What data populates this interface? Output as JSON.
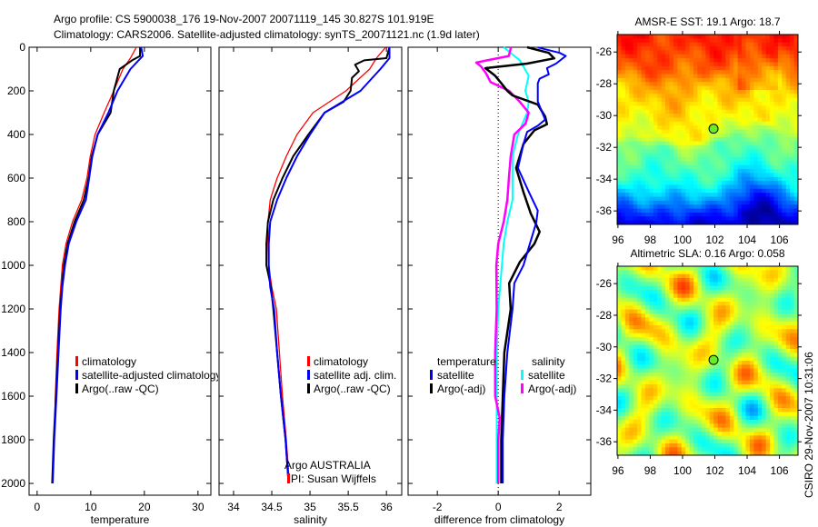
{
  "title": {
    "line1": "Argo profile: CS 5900038_176 19-Nov-2007 20071119_145 30.827S 101.919E",
    "line2": "Climatology: CARS2006. Satellite-adjusted climatology: synTS_20071121.nc (1.9d later)"
  },
  "footer_stamp": "CSIRO 29-Nov-2007 10:31:06",
  "colors": {
    "climatology": "#ff0000",
    "satellite": "#0000ff",
    "argo": "#000000",
    "sal_satellite": "#00ffff",
    "sal_argo": "#ff00ff"
  },
  "chart_data": [
    {
      "type": "line",
      "id": "temperature",
      "xlabel": "temperature",
      "ylabel": "",
      "xlim": [
        -1.5,
        32.4
      ],
      "ylim": [
        2054,
        0
      ],
      "xticks": [
        0,
        10,
        20,
        30
      ],
      "yticks": [
        0,
        200,
        400,
        600,
        800,
        1000,
        1200,
        1400,
        1600,
        1800,
        2000
      ],
      "legend": [
        "climatology",
        "satellite-adjusted climatology",
        "Argo(..raw -QC)"
      ],
      "series": [
        {
          "name": "climatology",
          "color": "#ff0000",
          "width": 1.3,
          "points": [
            [
              0,
              18.5
            ],
            [
              50,
              17.4
            ],
            [
              100,
              16.0
            ],
            [
              200,
              14.3
            ],
            [
              300,
              12.5
            ],
            [
              400,
              10.8
            ],
            [
              500,
              9.9
            ],
            [
              600,
              9.3
            ],
            [
              700,
              8.3
            ],
            [
              800,
              6.6
            ],
            [
              900,
              5.4
            ],
            [
              1000,
              4.7
            ],
            [
              1100,
              4.4
            ],
            [
              1200,
              4.1
            ],
            [
              1400,
              3.7
            ],
            [
              1600,
              3.4
            ],
            [
              1800,
              3.2
            ],
            [
              2000,
              2.9
            ]
          ]
        },
        {
          "name": "Argo(..raw -QC)",
          "color": "#000000",
          "width": 2,
          "points": [
            [
              0,
              19.2
            ],
            [
              40,
              19.2
            ],
            [
              60,
              17.7
            ],
            [
              100,
              15.4
            ],
            [
              200,
              14.3
            ],
            [
              300,
              13.7
            ],
            [
              400,
              11.3
            ],
            [
              500,
              10.2
            ],
            [
              600,
              9.6
            ],
            [
              700,
              8.7
            ],
            [
              800,
              7.0
            ],
            [
              900,
              5.7
            ],
            [
              1000,
              5.0
            ],
            [
              1200,
              4.3
            ],
            [
              1400,
              3.9
            ],
            [
              1600,
              3.5
            ],
            [
              1800,
              3.1
            ],
            [
              2000,
              2.8
            ]
          ]
        },
        {
          "name": "satellite-adjusted climatology",
          "color": "#0000ff",
          "width": 2,
          "points": [
            [
              0,
              19.4
            ],
            [
              40,
              19.7
            ],
            [
              100,
              17.4
            ],
            [
              200,
              15.0
            ],
            [
              300,
              13.3
            ],
            [
              400,
              11.3
            ],
            [
              500,
              10.3
            ],
            [
              600,
              9.7
            ],
            [
              700,
              9.1
            ],
            [
              800,
              7.3
            ],
            [
              900,
              5.9
            ],
            [
              1000,
              5.2
            ],
            [
              1100,
              4.7
            ],
            [
              1200,
              4.4
            ],
            [
              1400,
              4.0
            ],
            [
              1600,
              3.6
            ],
            [
              1800,
              3.2
            ],
            [
              2000,
              2.9
            ]
          ]
        }
      ]
    },
    {
      "type": "line",
      "id": "salinity",
      "xlabel": "salinity",
      "xlim": [
        33.81,
        36.2
      ],
      "ylim": [
        2054,
        0
      ],
      "xticks": [
        34,
        34.5,
        35,
        35.5,
        36
      ],
      "xtick_labels": [
        "34",
        "34.5",
        "35",
        "35.5",
        "36"
      ],
      "yticks": [
        0,
        200,
        400,
        600,
        800,
        1000,
        1200,
        1400,
        1600,
        1800,
        2000
      ],
      "legend": [
        "climatology",
        "satellite adj. clim.",
        "Argo(..raw -QC)"
      ],
      "annotations": [
        "Argo AUSTRALIA",
        "PI: Susan Wijffels"
      ],
      "series": [
        {
          "name": "climatology",
          "color": "#ff0000",
          "width": 1.3,
          "points": [
            [
              0,
              35.99
            ],
            [
              50,
              35.87
            ],
            [
              100,
              35.78
            ],
            [
              200,
              35.47
            ],
            [
              300,
              35.04
            ],
            [
              400,
              34.83
            ],
            [
              500,
              34.69
            ],
            [
              600,
              34.57
            ],
            [
              700,
              34.48
            ],
            [
              800,
              34.45
            ],
            [
              900,
              34.45
            ],
            [
              1000,
              34.46
            ],
            [
              1100,
              34.5
            ],
            [
              1200,
              34.56
            ],
            [
              1400,
              34.6
            ],
            [
              1600,
              34.64
            ],
            [
              1800,
              34.69
            ],
            [
              2000,
              34.73
            ]
          ]
        },
        {
          "name": "Argo(..raw -QC)",
          "color": "#000000",
          "width": 2,
          "points": [
            [
              0,
              36.04
            ],
            [
              50,
              36.0
            ],
            [
              60,
              35.71
            ],
            [
              80,
              35.59
            ],
            [
              110,
              35.64
            ],
            [
              140,
              35.55
            ],
            [
              200,
              35.53
            ],
            [
              250,
              35.44
            ],
            [
              300,
              35.19
            ],
            [
              400,
              34.98
            ],
            [
              500,
              34.78
            ],
            [
              600,
              34.64
            ],
            [
              700,
              34.52
            ],
            [
              800,
              34.45
            ],
            [
              900,
              34.43
            ],
            [
              1000,
              34.43
            ],
            [
              1100,
              34.49
            ],
            [
              1200,
              34.52
            ],
            [
              1400,
              34.57
            ],
            [
              1600,
              34.62
            ],
            [
              1800,
              34.68
            ],
            [
              2000,
              34.72
            ]
          ]
        },
        {
          "name": "satellite adj. clim.",
          "color": "#0000ff",
          "width": 2,
          "points": [
            [
              0,
              36.04
            ],
            [
              50,
              36.04
            ],
            [
              100,
              35.92
            ],
            [
              200,
              35.66
            ],
            [
              300,
              35.19
            ],
            [
              400,
              35.0
            ],
            [
              500,
              34.83
            ],
            [
              600,
              34.69
            ],
            [
              700,
              34.57
            ],
            [
              800,
              34.48
            ],
            [
              900,
              34.46
            ],
            [
              1000,
              34.46
            ],
            [
              1100,
              34.48
            ],
            [
              1200,
              34.53
            ],
            [
              1400,
              34.57
            ],
            [
              1600,
              34.62
            ],
            [
              1800,
              34.68
            ],
            [
              2000,
              34.72
            ]
          ]
        }
      ]
    },
    {
      "type": "line",
      "id": "difference",
      "xlabel": "difference from climatology",
      "xlim": [
        -2.96,
        3.04
      ],
      "ylim": [
        2054,
        0
      ],
      "xticks": [
        -2,
        0,
        2
      ],
      "yticks": [
        0,
        200,
        400,
        600,
        800,
        1000,
        1200,
        1400,
        1600,
        1800,
        2000
      ],
      "zero_line": 0,
      "legend_headers": [
        "temperature",
        "salinity"
      ],
      "legend": [
        "satellite",
        "Argo(-adj)",
        "satellite",
        "Argo(-adj)"
      ],
      "series": [
        {
          "name": "salinity satellite",
          "color": "#00ffff",
          "width": 2,
          "points": [
            [
              0,
              0.18
            ],
            [
              60,
              0.71
            ],
            [
              130,
              1.0
            ],
            [
              200,
              0.89
            ],
            [
              250,
              1.0
            ],
            [
              300,
              0.95
            ],
            [
              400,
              0.65
            ],
            [
              500,
              0.47
            ],
            [
              600,
              0.47
            ],
            [
              700,
              0.47
            ],
            [
              800,
              0.3
            ],
            [
              900,
              0.18
            ],
            [
              1000,
              0.12
            ],
            [
              1100,
              0.06
            ],
            [
              1200,
              0.0
            ],
            [
              1400,
              -0.05
            ],
            [
              1700,
              -0.05
            ],
            [
              2000,
              -0.05
            ]
          ]
        },
        {
          "name": "salinity Argo(-adj)",
          "color": "#ff00ff",
          "width": 2.5,
          "points": [
            [
              0,
              0.42
            ],
            [
              40,
              0.35
            ],
            [
              60,
              -0.36
            ],
            [
              70,
              -0.72
            ],
            [
              90,
              -0.55
            ],
            [
              120,
              -0.4
            ],
            [
              160,
              -0.25
            ],
            [
              200,
              0.36
            ],
            [
              250,
              0.71
            ],
            [
              300,
              1.0
            ],
            [
              350,
              0.9
            ],
            [
              400,
              0.53
            ],
            [
              500,
              0.41
            ],
            [
              600,
              0.35
            ],
            [
              700,
              0.3
            ],
            [
              800,
              0.18
            ],
            [
              900,
              0.0
            ],
            [
              1000,
              -0.06
            ],
            [
              1200,
              -0.05
            ],
            [
              1400,
              -0.1
            ],
            [
              1600,
              -0.1
            ],
            [
              1700,
              0.05
            ],
            [
              1800,
              0.0
            ],
            [
              2000,
              0.0
            ]
          ]
        },
        {
          "name": "temperature Argo(-adj)",
          "color": "#000000",
          "width": 2.5,
          "points": [
            [
              0,
              0.95
            ],
            [
              26,
              1.66
            ],
            [
              51,
              1.84
            ],
            [
              75,
              0.95
            ],
            [
              96,
              -0.42
            ],
            [
              131,
              -0.1
            ],
            [
              165,
              0.1
            ],
            [
              200,
              0.3
            ],
            [
              221,
              0.47
            ],
            [
              263,
              1.3
            ],
            [
              318,
              1.54
            ],
            [
              353,
              1.6
            ],
            [
              381,
              1.19
            ],
            [
              443,
              0.83
            ],
            [
              554,
              0.59
            ],
            [
              665,
              0.83
            ],
            [
              763,
              1.07
            ],
            [
              846,
              1.36
            ],
            [
              901,
              1.19
            ],
            [
              985,
              0.71
            ],
            [
              1082,
              0.36
            ],
            [
              1201,
              0.41
            ],
            [
              1400,
              0.2
            ],
            [
              1600,
              0.15
            ],
            [
              1800,
              0.1
            ],
            [
              2000,
              0.1
            ]
          ]
        },
        {
          "name": "temperature satellite",
          "color": "#0000ff",
          "width": 2,
          "points": [
            [
              1,
              1.3
            ],
            [
              26,
              2.02
            ],
            [
              40,
              2.22
            ],
            [
              75,
              1.9
            ],
            [
              96,
              1.6
            ],
            [
              124,
              1.66
            ],
            [
              144,
              1.36
            ],
            [
              165,
              1.3
            ],
            [
              249,
              1.3
            ],
            [
              290,
              1.42
            ],
            [
              332,
              1.54
            ],
            [
              360,
              1.3
            ],
            [
              388,
              0.95
            ],
            [
              443,
              0.83
            ],
            [
              554,
              0.65
            ],
            [
              665,
              1.01
            ],
            [
              749,
              1.3
            ],
            [
              804,
              1.25
            ],
            [
              915,
              1.01
            ],
            [
              999,
              0.83
            ],
            [
              1082,
              0.53
            ],
            [
              1201,
              0.47
            ],
            [
              1400,
              0.3
            ],
            [
              1600,
              0.2
            ],
            [
              1800,
              0.15
            ],
            [
              2000,
              0.15
            ]
          ]
        }
      ]
    },
    {
      "type": "heatmap",
      "id": "sst_map",
      "title": "AMSR-E SST: 19.1 Argo: 18.7",
      "xlim": [
        95.95,
        107.15
      ],
      "ylim": [
        -36.85,
        -24.9
      ],
      "xticks": [
        96,
        98,
        100,
        102,
        104,
        106
      ],
      "yticks": [
        -26,
        -28,
        -30,
        -32,
        -34,
        -36
      ],
      "marker": {
        "lon": 101.919,
        "lat": -30.827
      }
    },
    {
      "type": "heatmap",
      "id": "sla_map",
      "title": "Altimetric SLA: 0.16 Argo: 0.058",
      "xlim": [
        95.95,
        107.15
      ],
      "ylim": [
        -36.85,
        -24.9
      ],
      "xticks": [
        96,
        98,
        100,
        102,
        104,
        106
      ],
      "yticks": [
        -26,
        -28,
        -30,
        -32,
        -34,
        -36
      ],
      "marker": {
        "lon": 101.919,
        "lat": -30.827
      }
    }
  ]
}
